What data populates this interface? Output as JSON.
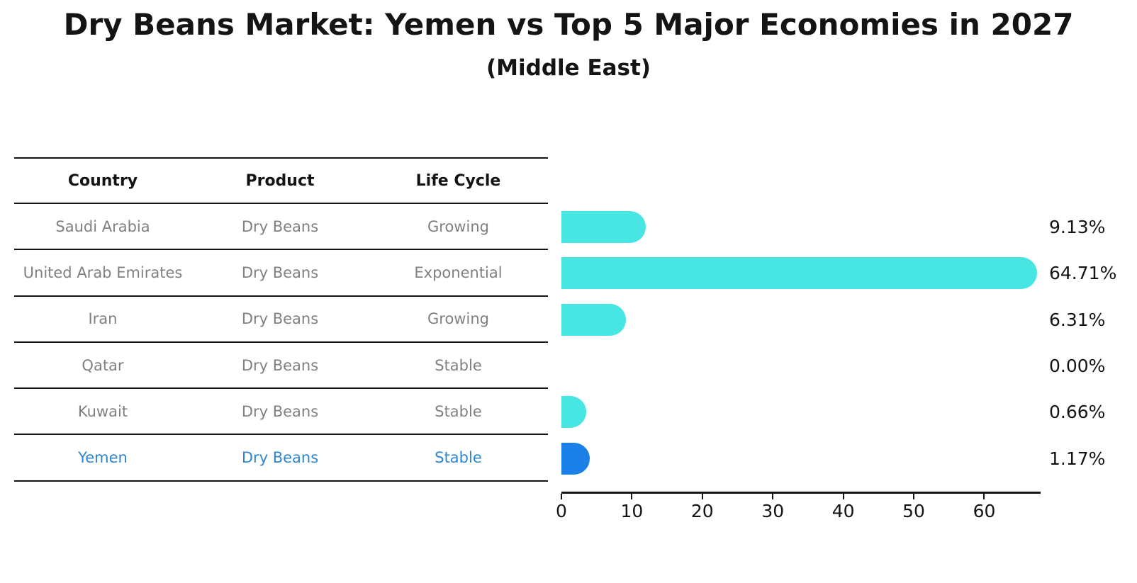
{
  "title": "Dry Beans Market: Yemen vs Top 5 Major Economies in 2027",
  "subtitle": "(Middle East)",
  "table": {
    "headers": [
      "Country",
      "Product",
      "Life Cycle"
    ],
    "rows": [
      {
        "country": "Saudi Arabia",
        "product": "Dry Beans",
        "life_cycle": "Growing",
        "highlight": false
      },
      {
        "country": "United Arab Emirates",
        "product": "Dry Beans",
        "life_cycle": "Exponential",
        "highlight": false
      },
      {
        "country": "Iran",
        "product": "Dry Beans",
        "life_cycle": "Growing",
        "highlight": false
      },
      {
        "country": "Qatar",
        "product": "Dry Beans",
        "life_cycle": "Stable",
        "highlight": false
      },
      {
        "country": "Kuwait",
        "product": "Dry Beans",
        "life_cycle": "Stable",
        "highlight": false
      },
      {
        "country": "Yemen",
        "product": "Dry Beans",
        "life_cycle": "Stable",
        "highlight": true
      }
    ]
  },
  "chart_data": {
    "type": "bar",
    "orientation": "horizontal",
    "title": "Dry Beans Market: Yemen vs Top 5 Major Economies in 2027",
    "subtitle": "(Middle East)",
    "categories": [
      "Saudi Arabia",
      "United Arab Emirates",
      "Iran",
      "Qatar",
      "Kuwait",
      "Yemen"
    ],
    "values": [
      9.13,
      64.71,
      6.31,
      0.0,
      0.66,
      1.17
    ],
    "value_labels": [
      "9.13%",
      "64.71%",
      "6.31%",
      "0.00%",
      "0.66%",
      "1.17%"
    ],
    "x_ticks": [
      0,
      10,
      20,
      30,
      40,
      50,
      60
    ],
    "xlim": [
      0,
      68
    ],
    "grid": false,
    "legend": false,
    "highlight_index": 5
  },
  "colors": {
    "bar": "#48e6e2",
    "highlight_bar": "#1b80e8",
    "highlight_text": "#2e86d2",
    "cell_text": "#808080",
    "axis": "#141414"
  }
}
